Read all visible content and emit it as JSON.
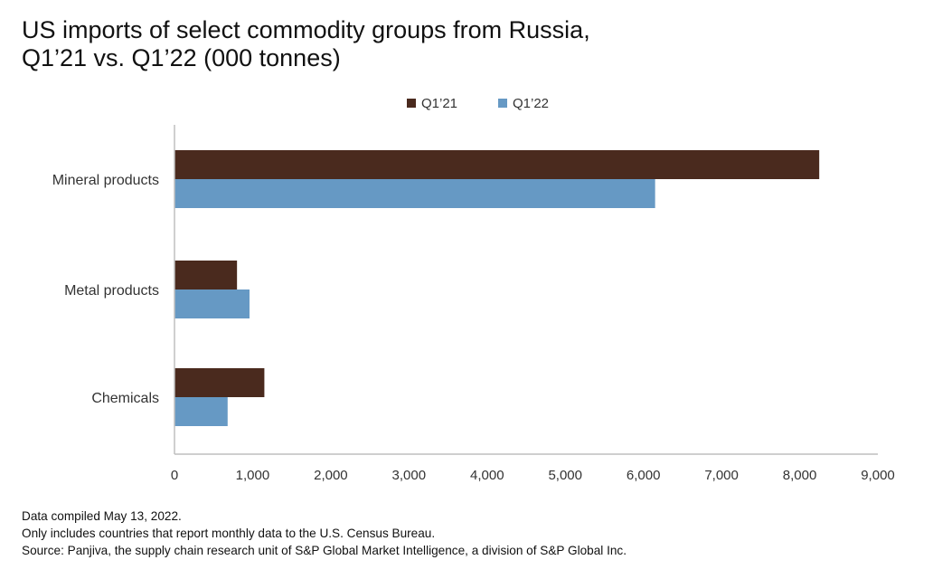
{
  "title_lines": [
    "US imports of select commodity groups from Russia,",
    "Q1’21 vs. Q1’22 (000 tonnes)"
  ],
  "notes": [
    "Data compiled May 13, 2022.",
    "Only includes countries that report monthly data to the U.S. Census Bureau.",
    "Source: Panjiva, the supply chain research unit of S&P Global Market Intelligence, a division of S&P Global Inc."
  ],
  "colors": {
    "q1_21": "#4a2a1e",
    "q1_22": "#6699c4",
    "axis": "#bfbfbf",
    "text": "#333333"
  },
  "chart_data": {
    "type": "bar",
    "orientation": "horizontal",
    "title": "US imports of select commodity groups from Russia, Q1’21 vs. Q1’22 (000 tonnes)",
    "categories": [
      "Mineral products",
      "Metal products",
      "Chemicals"
    ],
    "series": [
      {
        "name": "Q1’21",
        "values": [
          8250,
          800,
          1150
        ]
      },
      {
        "name": "Q1’22",
        "values": [
          6150,
          960,
          680
        ]
      }
    ],
    "xlim": [
      0,
      9000
    ],
    "xticks": [
      0,
      1000,
      2000,
      3000,
      4000,
      5000,
      6000,
      7000,
      8000,
      9000
    ],
    "xtick_labels": [
      "0",
      "1,000",
      "2,000",
      "3,000",
      "4,000",
      "5,000",
      "6,000",
      "7,000",
      "8,000",
      "9,000"
    ],
    "xlabel": "",
    "ylabel": "",
    "legend_position": "top-center",
    "grid": false
  }
}
